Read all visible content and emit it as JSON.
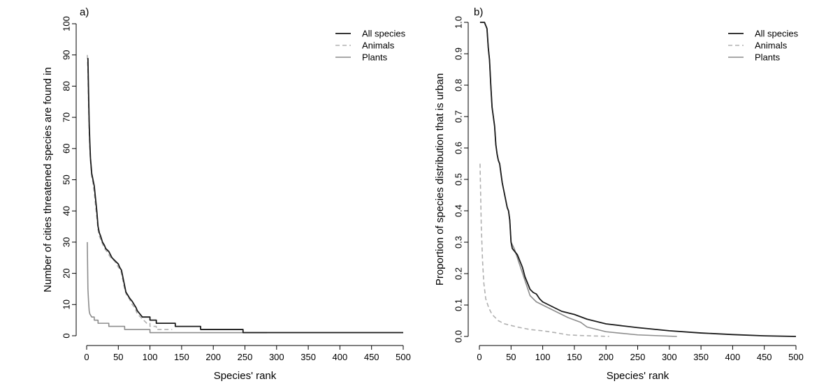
{
  "colors": {
    "all_species": "#1a1a1a",
    "animals": "#b0b0b0",
    "plants": "#8c8c8c",
    "axis": "#000000"
  },
  "chart_data": [
    {
      "type": "line",
      "panel_label": "a)",
      "xlabel": "Species' rank",
      "ylabel": "Number of cities threatened species are found in",
      "xlim": [
        0,
        500
      ],
      "ylim": [
        0,
        100
      ],
      "xticks": [
        0,
        50,
        100,
        150,
        200,
        250,
        300,
        350,
        400,
        450,
        500
      ],
      "yticks": [
        0,
        10,
        20,
        30,
        40,
        50,
        60,
        70,
        80,
        90,
        100
      ],
      "legend_position": "top-right",
      "grid": false,
      "series": [
        {
          "name": "All species",
          "style": "solid",
          "points": [
            [
              2,
              89
            ],
            [
              3,
              78
            ],
            [
              4,
              68
            ],
            [
              5,
              62
            ],
            [
              6,
              57
            ],
            [
              8,
              52
            ],
            [
              10,
              50
            ],
            [
              12,
              48
            ],
            [
              14,
              44
            ],
            [
              16,
              40
            ],
            [
              18,
              35
            ],
            [
              20,
              33
            ],
            [
              22,
              32
            ],
            [
              25,
              30
            ],
            [
              28,
              29
            ],
            [
              30,
              28
            ],
            [
              35,
              27
            ],
            [
              40,
              25
            ],
            [
              45,
              24
            ],
            [
              50,
              23
            ],
            [
              52,
              22
            ],
            [
              55,
              21
            ],
            [
              58,
              18
            ],
            [
              60,
              16
            ],
            [
              62,
              14
            ],
            [
              65,
              13
            ],
            [
              68,
              12
            ],
            [
              72,
              11
            ],
            [
              75,
              10
            ],
            [
              78,
              9
            ],
            [
              80,
              8
            ],
            [
              84,
              7
            ],
            [
              88,
              6
            ],
            [
              100,
              6
            ],
            [
              100,
              5
            ],
            [
              110,
              5
            ],
            [
              110,
              4
            ],
            [
              140,
              4
            ],
            [
              140,
              3
            ],
            [
              180,
              3
            ],
            [
              180,
              2
            ],
            [
              247,
              2
            ],
            [
              247,
              1
            ],
            [
              500,
              1
            ]
          ]
        },
        {
          "name": "Animals",
          "style": "dashed",
          "points": [
            [
              1,
              90
            ],
            [
              2,
              85
            ],
            [
              3,
              75
            ],
            [
              4,
              66
            ],
            [
              5,
              60
            ],
            [
              6,
              56
            ],
            [
              8,
              51
            ],
            [
              10,
              49
            ],
            [
              12,
              46
            ],
            [
              14,
              42
            ],
            [
              16,
              38
            ],
            [
              18,
              34
            ],
            [
              20,
              32
            ],
            [
              24,
              30
            ],
            [
              28,
              28
            ],
            [
              32,
              27
            ],
            [
              38,
              25
            ],
            [
              44,
              24
            ],
            [
              50,
              22
            ],
            [
              54,
              21
            ],
            [
              57,
              18
            ],
            [
              60,
              15
            ],
            [
              63,
              13
            ],
            [
              67,
              12
            ],
            [
              72,
              10
            ],
            [
              76,
              9
            ],
            [
              80,
              7
            ],
            [
              85,
              6
            ],
            [
              90,
              5
            ],
            [
              95,
              4
            ],
            [
              100,
              4
            ],
            [
              100,
              3
            ],
            [
              110,
              3
            ],
            [
              110,
              2
            ],
            [
              135,
              2
            ]
          ]
        },
        {
          "name": "Plants",
          "style": "solid",
          "points": [
            [
              1,
              30
            ],
            [
              2,
              15
            ],
            [
              3,
              11
            ],
            [
              4,
              8
            ],
            [
              5,
              7
            ],
            [
              8,
              6
            ],
            [
              12,
              6
            ],
            [
              12,
              5
            ],
            [
              18,
              5
            ],
            [
              18,
              4
            ],
            [
              35,
              4
            ],
            [
              35,
              3
            ],
            [
              60,
              3
            ],
            [
              60,
              2
            ],
            [
              100,
              2
            ],
            [
              100,
              1
            ],
            [
              285,
              1
            ]
          ]
        }
      ]
    },
    {
      "type": "line",
      "panel_label": "b)",
      "xlabel": "Species' rank",
      "ylabel": "Proportion of species distribution that is urban",
      "xlim": [
        0,
        500
      ],
      "ylim": [
        0,
        1.0
      ],
      "xticks": [
        0,
        50,
        100,
        150,
        200,
        250,
        300,
        350,
        400,
        450,
        500
      ],
      "yticks": [
        "0.0",
        "0.1",
        "0.2",
        "0.3",
        "0.4",
        "0.5",
        "0.6",
        "0.7",
        "0.8",
        "0.9",
        "1.0"
      ],
      "legend_position": "top-right",
      "grid": false,
      "series": [
        {
          "name": "All species",
          "style": "solid",
          "points": [
            [
              1,
              1.0
            ],
            [
              8,
              1.0
            ],
            [
              12,
              0.98
            ],
            [
              14,
              0.92
            ],
            [
              16,
              0.88
            ],
            [
              18,
              0.8
            ],
            [
              20,
              0.73
            ],
            [
              22,
              0.7
            ],
            [
              24,
              0.67
            ],
            [
              26,
              0.61
            ],
            [
              28,
              0.58
            ],
            [
              30,
              0.56
            ],
            [
              32,
              0.55
            ],
            [
              34,
              0.52
            ],
            [
              36,
              0.49
            ],
            [
              38,
              0.47
            ],
            [
              40,
              0.45
            ],
            [
              42,
              0.43
            ],
            [
              44,
              0.41
            ],
            [
              46,
              0.4
            ],
            [
              48,
              0.37
            ],
            [
              50,
              0.3
            ],
            [
              52,
              0.28
            ],
            [
              56,
              0.27
            ],
            [
              60,
              0.26
            ],
            [
              64,
              0.24
            ],
            [
              68,
              0.22
            ],
            [
              72,
              0.19
            ],
            [
              76,
              0.17
            ],
            [
              80,
              0.15
            ],
            [
              85,
              0.14
            ],
            [
              90,
              0.135
            ],
            [
              95,
              0.12
            ],
            [
              100,
              0.11
            ],
            [
              110,
              0.1
            ],
            [
              120,
              0.09
            ],
            [
              130,
              0.08
            ],
            [
              150,
              0.07
            ],
            [
              170,
              0.055
            ],
            [
              200,
              0.04
            ],
            [
              250,
              0.028
            ],
            [
              300,
              0.018
            ],
            [
              350,
              0.011
            ],
            [
              400,
              0.006
            ],
            [
              450,
              0.002
            ],
            [
              500,
              0.0
            ]
          ]
        },
        {
          "name": "Animals",
          "style": "dashed",
          "points": [
            [
              1,
              0.55
            ],
            [
              2,
              0.45
            ],
            [
              3,
              0.35
            ],
            [
              5,
              0.24
            ],
            [
              7,
              0.17
            ],
            [
              10,
              0.12
            ],
            [
              15,
              0.09
            ],
            [
              20,
              0.07
            ],
            [
              30,
              0.05
            ],
            [
              40,
              0.04
            ],
            [
              60,
              0.03
            ],
            [
              80,
              0.022
            ],
            [
              100,
              0.018
            ],
            [
              120,
              0.012
            ],
            [
              140,
              0.005
            ],
            [
              160,
              0.003
            ],
            [
              205,
              0.0
            ]
          ]
        },
        {
          "name": "Plants",
          "style": "solid",
          "points": [
            [
              1,
              1.0
            ],
            [
              8,
              1.0
            ],
            [
              12,
              0.98
            ],
            [
              14,
              0.92
            ],
            [
              16,
              0.88
            ],
            [
              18,
              0.8
            ],
            [
              20,
              0.73
            ],
            [
              22,
              0.7
            ],
            [
              24,
              0.67
            ],
            [
              26,
              0.61
            ],
            [
              28,
              0.58
            ],
            [
              30,
              0.56
            ],
            [
              32,
              0.55
            ],
            [
              34,
              0.52
            ],
            [
              36,
              0.49
            ],
            [
              38,
              0.47
            ],
            [
              40,
              0.45
            ],
            [
              42,
              0.43
            ],
            [
              44,
              0.41
            ],
            [
              46,
              0.4
            ],
            [
              48,
              0.37
            ],
            [
              50,
              0.3
            ],
            [
              55,
              0.28
            ],
            [
              60,
              0.25
            ],
            [
              65,
              0.22
            ],
            [
              70,
              0.19
            ],
            [
              75,
              0.16
            ],
            [
              80,
              0.13
            ],
            [
              90,
              0.11
            ],
            [
              100,
              0.1
            ],
            [
              110,
              0.09
            ],
            [
              120,
              0.08
            ],
            [
              140,
              0.06
            ],
            [
              160,
              0.045
            ],
            [
              170,
              0.03
            ],
            [
              200,
              0.015
            ],
            [
              250,
              0.005
            ],
            [
              312,
              0.0
            ]
          ]
        }
      ]
    }
  ]
}
